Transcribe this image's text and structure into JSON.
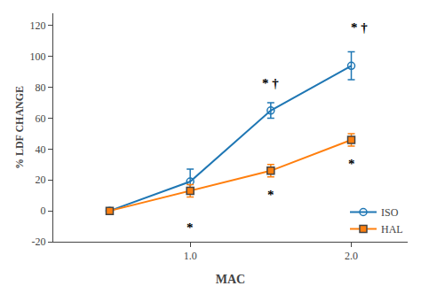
{
  "chart_data": {
    "type": "line",
    "x": [
      0.5,
      1.0,
      1.5,
      2.0
    ],
    "series": [
      {
        "name": "ISO",
        "values": [
          0,
          19,
          65,
          94
        ],
        "yerr": [
          1,
          8,
          5,
          9
        ],
        "marker": "circle-open",
        "annotations": [
          {
            "text": "* †",
            "x": 1.5,
            "y": 77
          },
          {
            "text": "* †",
            "x": 2.05,
            "y": 113
          }
        ]
      },
      {
        "name": "HAL",
        "values": [
          0,
          13,
          26,
          46
        ],
        "yerr": [
          1,
          4,
          4,
          4
        ],
        "marker": "square",
        "annotations": [
          {
            "text": "*",
            "x": 1.0,
            "y": -5
          },
          {
            "text": "*",
            "x": 1.5,
            "y": 16
          },
          {
            "text": "*",
            "x": 2.0,
            "y": 36
          }
        ]
      }
    ],
    "xlabel": "MAC",
    "ylabel": "% LDF CHANGE",
    "xlim": [
      0.15,
      2.35
    ],
    "ylim": [
      -20,
      128
    ],
    "xticks": [
      {
        "value": 1.0,
        "label": "1.0"
      },
      {
        "value": 2.0,
        "label": "2.0"
      }
    ],
    "yticks": [
      -20,
      0,
      20,
      40,
      60,
      80,
      100,
      120
    ],
    "legend": "lower right",
    "grid": false
  }
}
